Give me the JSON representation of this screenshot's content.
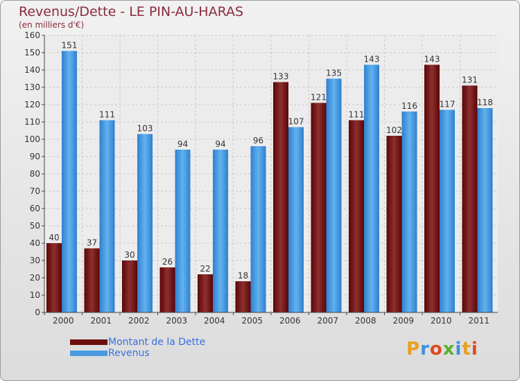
{
  "header": {
    "title": "Revenus/Dette - LE PIN-AU-HARAS",
    "subtitle": "(en milliers d'€)"
  },
  "chart_data": {
    "type": "bar",
    "categories": [
      "2000",
      "2001",
      "2002",
      "2003",
      "2004",
      "2005",
      "2006",
      "2007",
      "2008",
      "2009",
      "2010",
      "2011"
    ],
    "series": [
      {
        "name": "Montant de la Dette",
        "color": "#7a1818",
        "values": [
          40,
          37,
          30,
          26,
          22,
          18,
          133,
          121,
          111,
          102,
          143,
          131
        ]
      },
      {
        "name": "Revenus",
        "color": "#4a9be0",
        "values": [
          151,
          111,
          103,
          94,
          94,
          96,
          107,
          135,
          143,
          116,
          117,
          118
        ]
      }
    ],
    "ylim": [
      0,
      160
    ],
    "yticks": [
      0,
      10,
      20,
      30,
      40,
      50,
      60,
      70,
      80,
      90,
      100,
      110,
      120,
      130,
      140,
      150,
      160
    ],
    "grid": true,
    "legend_position": "bottom-left"
  },
  "legend": {
    "items": [
      {
        "label": "Montant de la Dette",
        "color": "#6b0f0f"
      },
      {
        "label": "Revenus",
        "color": "#4a9be0"
      }
    ]
  },
  "logo": {
    "text": "Proxiti",
    "colors": [
      "#e8a020",
      "#3b8fe0",
      "#e04a20",
      "#59b030",
      "#3b8fe0",
      "#e8a020",
      "#e04a20"
    ]
  }
}
